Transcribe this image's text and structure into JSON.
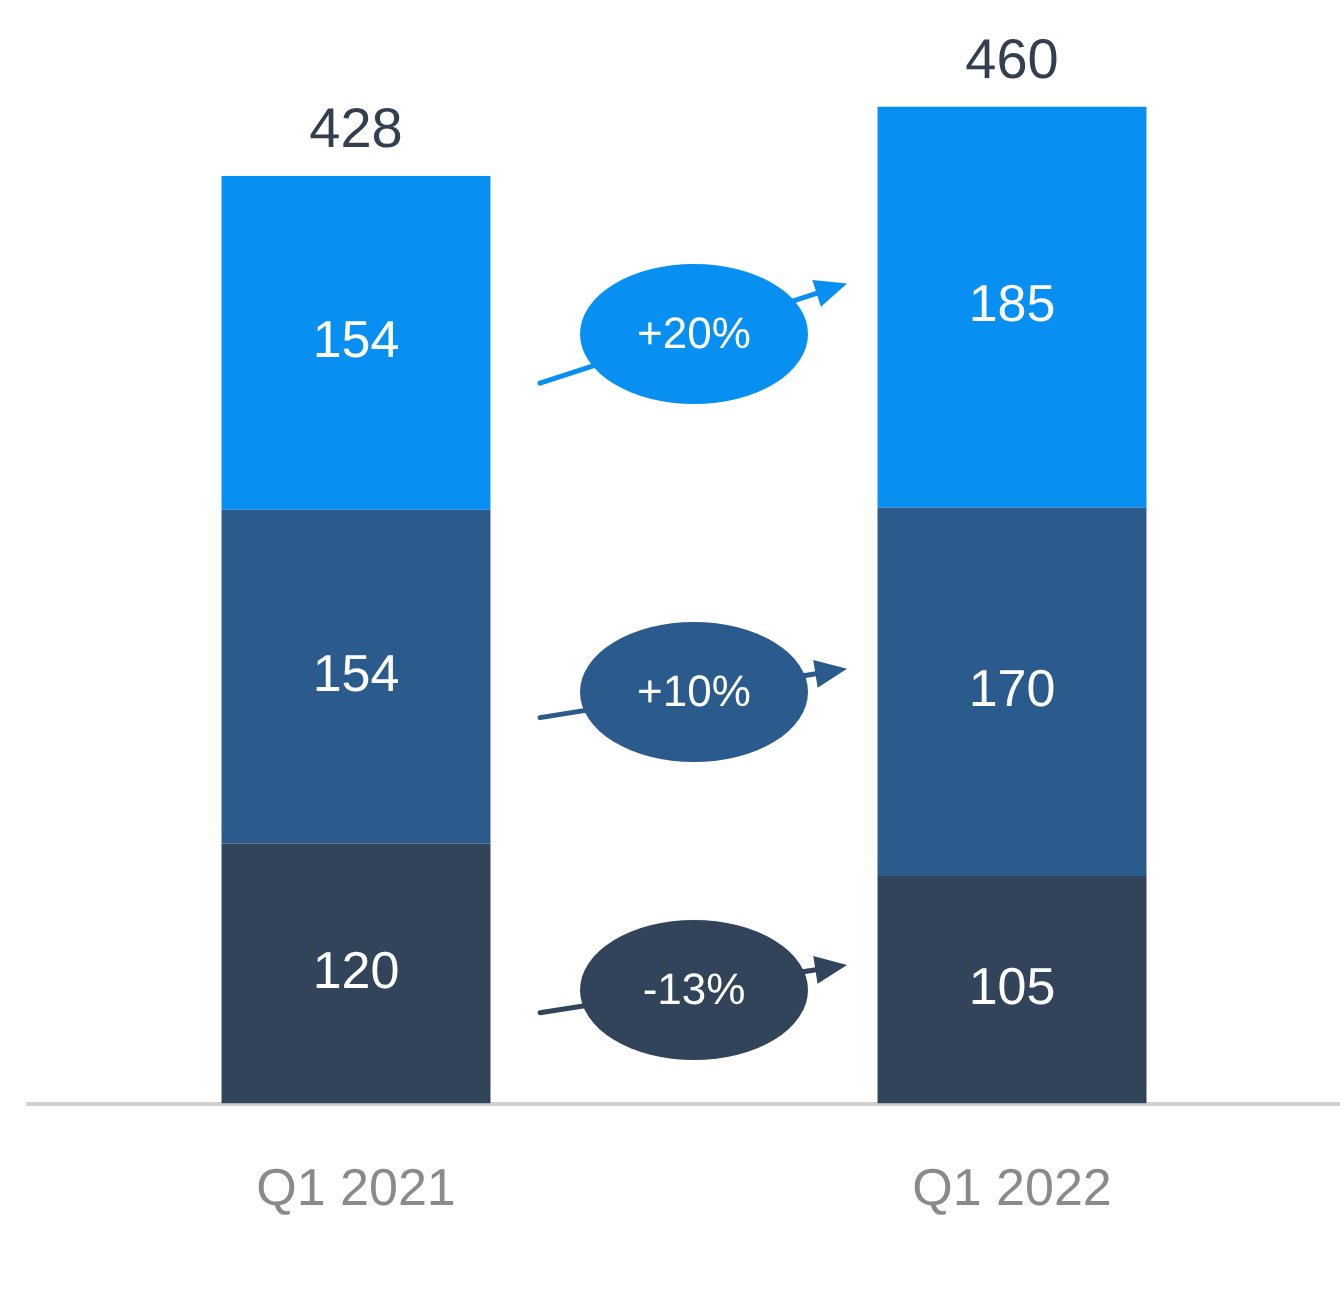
{
  "chart_data": {
    "type": "bar",
    "stacked": true,
    "categories": [
      "Q1 2021",
      "Q1 2022"
    ],
    "series": [
      {
        "color": "#324459",
        "values": [
          120,
          105
        ]
      },
      {
        "color": "#2a5b8c",
        "values": [
          154,
          170
        ]
      },
      {
        "color": "#0790f2",
        "values": [
          154,
          185
        ]
      }
    ],
    "data_labels": true,
    "totals": [
      "428",
      "460"
    ],
    "annotations": [
      "+20%",
      "+10%",
      "-13%"
    ],
    "legend": false,
    "grid": false
  }
}
